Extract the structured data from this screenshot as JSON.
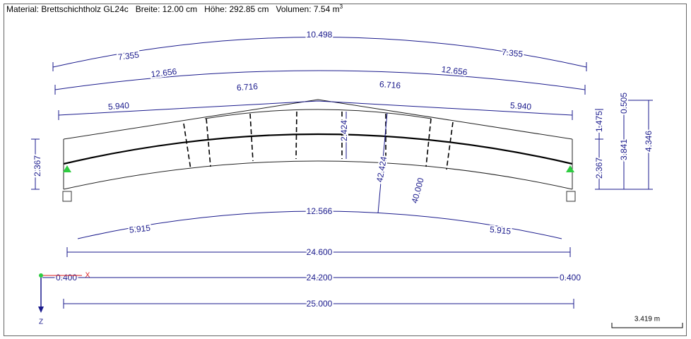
{
  "header": {
    "material": "Material: Brettschichtholz GL24c",
    "width": "Breite: 12.00 cm",
    "height": "Höhe: 292.85 cm",
    "volume": "Volumen: 7.54 m",
    "volume_exponent": "3"
  },
  "dimensions": [
    "10.498",
    "7.355",
    "7.355",
    "12.656",
    "12.656",
    "6.716",
    "6.716",
    "5.940",
    "5.940",
    "2.424",
    "42.424",
    "40.000",
    "12.566",
    "5.915",
    "5.915",
    "24.600",
    "24.200",
    "0.400",
    "0.400",
    "25.000",
    "2.367",
    "2.367",
    "1.475",
    "0.505",
    "3.841",
    "4.346"
  ],
  "axes": {
    "x": "X",
    "z": "Z"
  },
  "scale_bar": "3.419 m"
}
